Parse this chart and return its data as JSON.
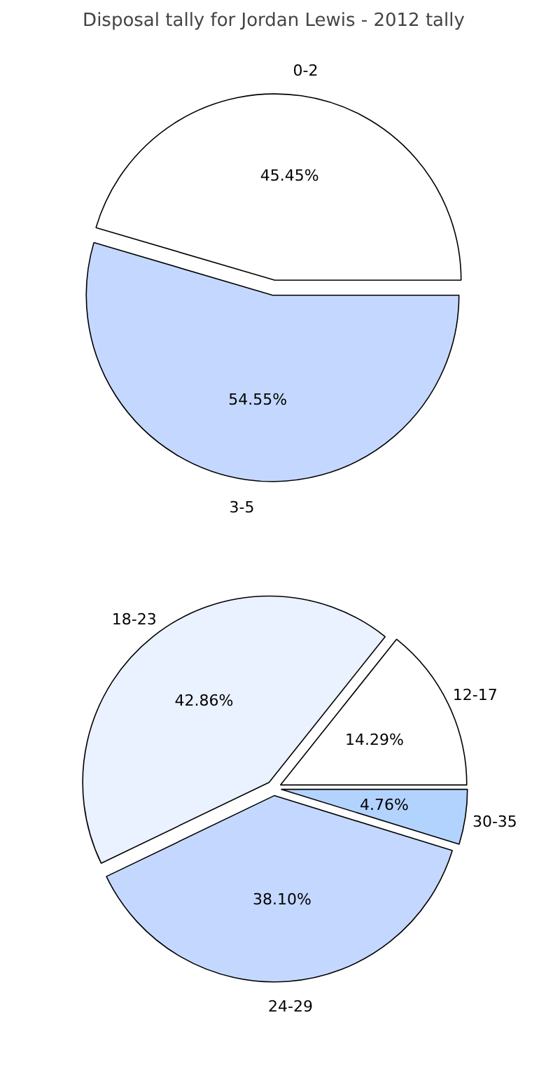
{
  "chart_data": [
    {
      "type": "pie",
      "title": "Disposal tally for Jordan Lewis - 2012 tally",
      "categories": [
        "0-2",
        "3-5"
      ],
      "values": [
        45.45,
        54.55
      ],
      "value_labels": [
        "45.45%",
        "54.55%"
      ],
      "colors": [
        "#ffffff",
        "#c4d8ff"
      ]
    },
    {
      "type": "pie",
      "categories": [
        "12-17",
        "18-23",
        "24-29",
        "30-35"
      ],
      "values": [
        14.29,
        42.86,
        38.1,
        4.76
      ],
      "value_labels": [
        "14.29%",
        "42.86%",
        "38.10%",
        "4.76%"
      ],
      "colors": [
        "#ffffff",
        "#eaf1ff",
        "#c4d8ff",
        "#b3d3ff"
      ]
    }
  ]
}
